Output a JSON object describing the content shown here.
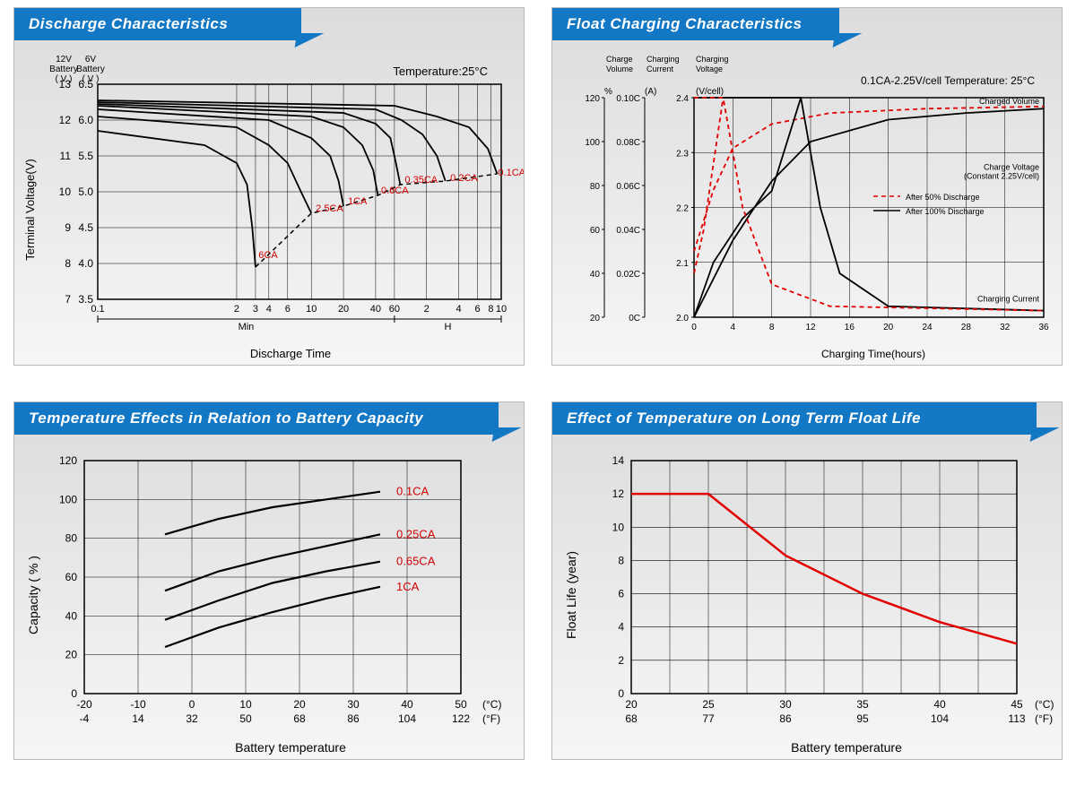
{
  "colors": {
    "tab_bg": "#1277c4",
    "tab_text": "#ffffff",
    "panel_grad_top": "#dcdcdc",
    "panel_grad_bot": "#f6f6f6",
    "grid": "#000000",
    "curve_black": "#000000",
    "curve_red": "#e20000",
    "label_red": "#d20000",
    "text": "#000000"
  },
  "panel1": {
    "title": "Discharge Characteristics",
    "type": "line",
    "temp_label": "Temperature:25°C",
    "y12_title": "12V\nBattery\n( V )",
    "y6_title": "6V\nBattery\n( V )",
    "y_axis_label": "Terminal Voltage(V)",
    "x_axis_label": "Discharge Time",
    "x_scale": "log",
    "x_ticks": [
      "0.1",
      "2",
      "3",
      "4",
      "6",
      "10",
      "20",
      "40",
      "60",
      "2",
      "4",
      "6",
      "8",
      "10"
    ],
    "x_section_labels": [
      "Min",
      "H"
    ],
    "y12_ticks": [
      7,
      8,
      9,
      10,
      11,
      12,
      13
    ],
    "y6_ticks": [
      3.5,
      4.0,
      4.5,
      5.0,
      5.5,
      6.0,
      6.5
    ],
    "curve_labels": [
      "6CA",
      "2.5CA",
      "1CA",
      "0.6CA",
      "0.35CA",
      "0.2CA",
      "0.1CA"
    ],
    "curve_label_color": "#d20000",
    "series": [
      {
        "label": "6CA",
        "points": [
          [
            0.1,
            11.7
          ],
          [
            1,
            11.3
          ],
          [
            2,
            10.8
          ],
          [
            2.5,
            10.2
          ],
          [
            2.8,
            9.0
          ],
          [
            3,
            7.9
          ]
        ]
      },
      {
        "label": "2.5CA",
        "points": [
          [
            0.1,
            12.1
          ],
          [
            2,
            11.8
          ],
          [
            4,
            11.3
          ],
          [
            6,
            10.8
          ],
          [
            8,
            10.0
          ],
          [
            10,
            9.4
          ]
        ]
      },
      {
        "label": "1CA",
        "points": [
          [
            0.1,
            12.3
          ],
          [
            4,
            12.0
          ],
          [
            10,
            11.5
          ],
          [
            15,
            11.0
          ],
          [
            18,
            10.3
          ],
          [
            20,
            9.6
          ]
        ]
      },
      {
        "label": "0.6CA",
        "points": [
          [
            0.1,
            12.4
          ],
          [
            10,
            12.1
          ],
          [
            20,
            11.8
          ],
          [
            30,
            11.3
          ],
          [
            38,
            10.6
          ],
          [
            42,
            9.9
          ]
        ]
      },
      {
        "label": "0.35CA",
        "points": [
          [
            0.1,
            12.45
          ],
          [
            20,
            12.2
          ],
          [
            40,
            11.9
          ],
          [
            55,
            11.5
          ],
          [
            62,
            10.8
          ],
          [
            68,
            10.2
          ]
        ]
      },
      {
        "label": "0.2CA",
        "points": [
          [
            0.1,
            12.5
          ],
          [
            40,
            12.3
          ],
          [
            70,
            12.0
          ],
          [
            110,
            11.6
          ],
          [
            150,
            11.0
          ],
          [
            180,
            10.3
          ]
        ]
      },
      {
        "label": "0.1CA",
        "points": [
          [
            0.1,
            12.55
          ],
          [
            60,
            12.4
          ],
          [
            150,
            12.1
          ],
          [
            300,
            11.8
          ],
          [
            450,
            11.2
          ],
          [
            550,
            10.5
          ]
        ]
      }
    ],
    "dashed_connector": {
      "color": "#000",
      "dash": "5,4",
      "points": [
        [
          3,
          7.9
        ],
        [
          10,
          9.4
        ],
        [
          20,
          9.6
        ],
        [
          42,
          9.9
        ],
        [
          68,
          10.2
        ],
        [
          180,
          10.3
        ],
        [
          550,
          10.5
        ]
      ]
    }
  },
  "panel2": {
    "title": "Float Charging Characteristics",
    "type": "multi-axis-line",
    "header_labels": [
      "Charge\nVolume",
      "Charging\nCurrent",
      "Charging\nVoltage"
    ],
    "info_label": "0.1CA-2.25V/cell   Temperature: 25°C",
    "y1_unit": "%",
    "y2_unit": "(A)",
    "y3_unit": "(V/cell)",
    "y1_ticks": [
      20,
      40,
      60,
      80,
      100,
      120
    ],
    "y2_ticks": [
      "0C",
      "0.02C",
      "0.04C",
      "0.06C",
      "0.08C",
      "0.10C"
    ],
    "y3_ticks": [
      2.0,
      2.1,
      2.2,
      2.3,
      2.4
    ],
    "x_label": "Charging Time(hours)",
    "x_ticks": [
      0,
      4,
      8,
      12,
      16,
      20,
      24,
      28,
      32,
      36
    ],
    "annotations": [
      "Charged Volume",
      "Charge Voltage\n(Constant 2.25V/cell)",
      "Charging Current"
    ],
    "legend": [
      {
        "style": "dashed",
        "color": "#e20000",
        "label": "After 50% Discharge"
      },
      {
        "style": "solid",
        "color": "#000000",
        "label": "After 100% Discharge"
      }
    ],
    "series": [
      {
        "name": "volume_100",
        "color": "#000",
        "dash": "",
        "points": [
          [
            0,
            20
          ],
          [
            4,
            55
          ],
          [
            8,
            82
          ],
          [
            12,
            100
          ],
          [
            20,
            110
          ],
          [
            28,
            113
          ],
          [
            36,
            115
          ]
        ]
      },
      {
        "name": "volume_50",
        "color": "#e20000",
        "dash": "5,4",
        "points": [
          [
            0,
            50
          ],
          [
            2,
            78
          ],
          [
            4,
            97
          ],
          [
            8,
            108
          ],
          [
            14,
            113
          ],
          [
            24,
            115
          ],
          [
            36,
            116
          ]
        ]
      },
      {
        "name": "voltage_100",
        "color": "#000",
        "dash": "",
        "points": [
          [
            0,
            2.0
          ],
          [
            2,
            2.1
          ],
          [
            5,
            2.18
          ],
          [
            8,
            2.23
          ],
          [
            11,
            2.4
          ],
          [
            11.01,
            2.4
          ]
        ]
      },
      {
        "name": "voltage_50",
        "color": "#e20000",
        "dash": "5,4",
        "points": [
          [
            0,
            2.08
          ],
          [
            1,
            2.16
          ],
          [
            3,
            2.4
          ],
          [
            3.01,
            2.4
          ]
        ]
      },
      {
        "name": "current_100",
        "color": "#000",
        "dash": "",
        "points": [
          [
            0,
            0.1
          ],
          [
            11,
            0.1
          ],
          [
            13,
            0.05
          ],
          [
            15,
            0.02
          ],
          [
            20,
            0.005
          ],
          [
            36,
            0.003
          ]
        ]
      },
      {
        "name": "current_50",
        "color": "#e20000",
        "dash": "5,4",
        "points": [
          [
            0,
            0.1
          ],
          [
            3,
            0.1
          ],
          [
            5,
            0.05
          ],
          [
            8,
            0.015
          ],
          [
            14,
            0.005
          ],
          [
            36,
            0.003
          ]
        ]
      }
    ]
  },
  "panel3": {
    "title": "Temperature Effects in Relation to Battery Capacity",
    "type": "line",
    "y_label": "Capacity ( % )",
    "x_label": "Battery temperature",
    "y_ticks": [
      0,
      20,
      40,
      60,
      80,
      100,
      120
    ],
    "x_ticks_c": [
      -20,
      -10,
      0,
      10,
      20,
      30,
      40,
      50
    ],
    "x_ticks_f": [
      -4,
      14,
      32,
      50,
      68,
      86,
      104,
      122
    ],
    "x_unit_c": "(°C)",
    "x_unit_f": "(°F)",
    "curve_labels": [
      "0.1CA",
      "0.25CA",
      "0.65CA",
      "1CA"
    ],
    "curve_label_color": "#d20000",
    "series": [
      {
        "label": "0.1CA",
        "points": [
          [
            -5,
            82
          ],
          [
            5,
            90
          ],
          [
            15,
            96
          ],
          [
            25,
            100
          ],
          [
            35,
            104
          ]
        ]
      },
      {
        "label": "0.25CA",
        "points": [
          [
            -5,
            53
          ],
          [
            5,
            63
          ],
          [
            15,
            70
          ],
          [
            25,
            76
          ],
          [
            35,
            82
          ]
        ]
      },
      {
        "label": "0.65CA",
        "points": [
          [
            -5,
            38
          ],
          [
            5,
            48
          ],
          [
            15,
            57
          ],
          [
            25,
            63
          ],
          [
            35,
            68
          ]
        ]
      },
      {
        "label": "1CA",
        "points": [
          [
            -5,
            24
          ],
          [
            5,
            34
          ],
          [
            15,
            42
          ],
          [
            25,
            49
          ],
          [
            35,
            55
          ]
        ]
      }
    ]
  },
  "panel4": {
    "title": "Effect of Temperature on Long Term Float Life",
    "type": "line",
    "y_label": "Float Life (year)",
    "x_label": "Battery temperature",
    "y_ticks": [
      0,
      2,
      4,
      6,
      8,
      10,
      12,
      14
    ],
    "x_ticks_c": [
      20,
      25,
      30,
      35,
      40,
      45
    ],
    "x_ticks_f": [
      68,
      77,
      86,
      95,
      104,
      113
    ],
    "x_unit_c": "(°C)",
    "x_unit_f": "(°F)",
    "curve_color": "#e20000",
    "series": [
      {
        "points": [
          [
            20,
            12
          ],
          [
            25,
            12
          ],
          [
            30,
            8.3
          ],
          [
            35,
            6
          ],
          [
            40,
            4.3
          ],
          [
            45,
            3
          ]
        ]
      }
    ]
  }
}
